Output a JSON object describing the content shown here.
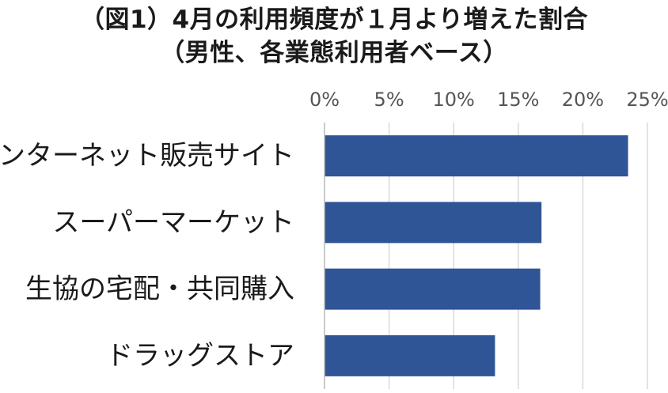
{
  "chart_data": {
    "type": "bar",
    "orientation": "horizontal",
    "title": "（図1）4月の利用頻度が１月より増えた割合",
    "subtitle": "（男性、各業態利用者ベース）",
    "categories": [
      "インターネット販売サイト",
      "スーパーマーケット",
      "生協の宅配・共同購入",
      "ドラッグストア"
    ],
    "values": [
      23.5,
      16.8,
      16.7,
      13.2
    ],
    "xlim": [
      0,
      25
    ],
    "xticks": [
      "0%",
      "5%",
      "10%",
      "15%",
      "20%",
      "25%"
    ],
    "xtick_values": [
      0,
      5,
      10,
      15,
      20,
      25
    ],
    "xaxis_position": "top",
    "grid": true,
    "legend": "none",
    "bar_color": "#2f5597",
    "grid_color": "#d9d9d9"
  }
}
